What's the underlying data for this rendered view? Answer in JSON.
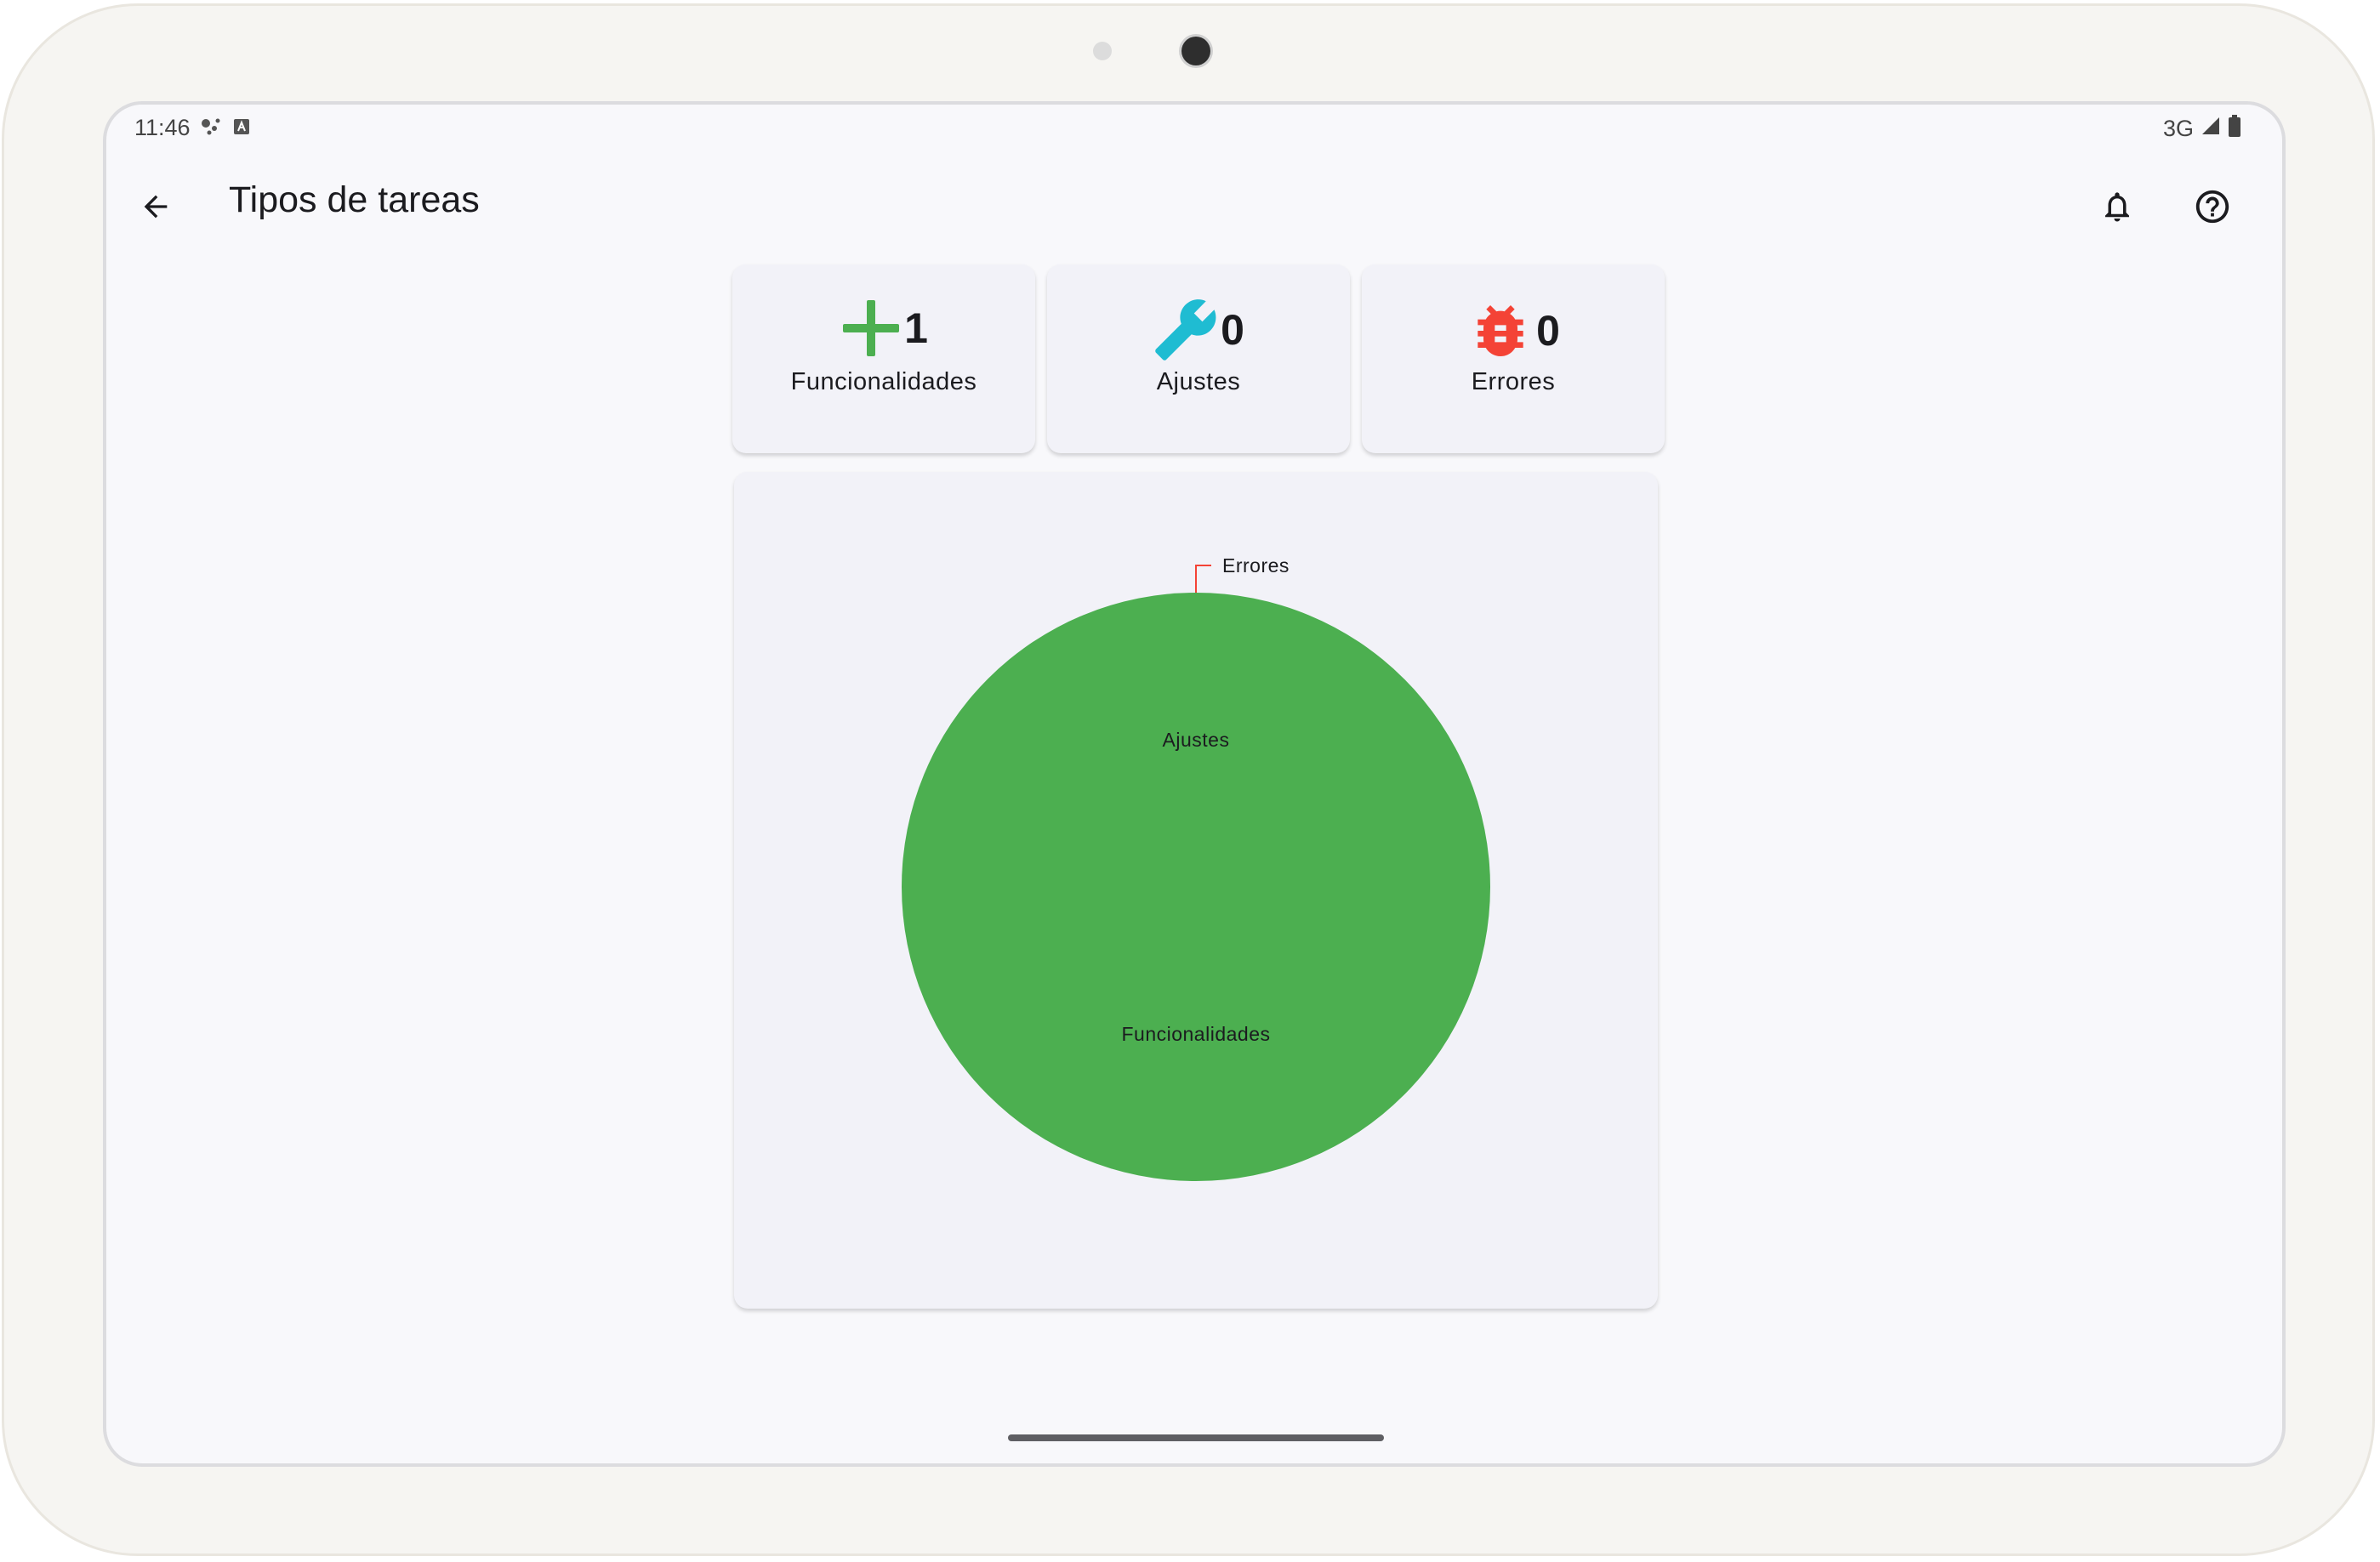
{
  "status_bar": {
    "time": "11:46",
    "network": "3G"
  },
  "app_bar": {
    "title": "Tipos de tareas"
  },
  "summary_cards": [
    {
      "count": "1",
      "label": "Funcionalidades",
      "icon": "plus-icon",
      "color": "#4caf50"
    },
    {
      "count": "0",
      "label": "Ajustes",
      "icon": "wrench-icon",
      "color": "#1fbcd2"
    },
    {
      "count": "0",
      "label": "Errores",
      "icon": "bug-icon",
      "color": "#f44336"
    }
  ],
  "chart_data": {
    "type": "pie",
    "categories": [
      "Funcionalidades",
      "Ajustes",
      "Errores"
    ],
    "values": [
      1,
      0,
      0
    ],
    "colors": [
      "#4caf50",
      "#1fbcd2",
      "#f44336"
    ],
    "legend": "none",
    "labels_visible": [
      "Errores",
      "Ajustes",
      "Funcionalidades"
    ]
  }
}
